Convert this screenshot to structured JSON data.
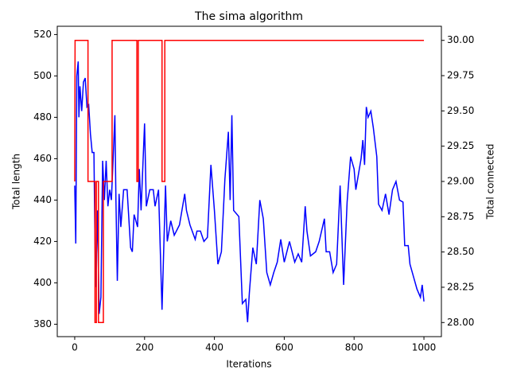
{
  "chart_data": {
    "type": "line",
    "title": "The sima algorithm",
    "x_label": "Iterations",
    "y_label": "Total length",
    "y2_label": "Total connected",
    "xlim": [
      -50,
      1050
    ],
    "xticks": [
      0,
      200,
      400,
      600,
      800,
      1000
    ],
    "ylim": [
      374,
      524
    ],
    "yticks": [
      380,
      400,
      420,
      440,
      460,
      480,
      500,
      520
    ],
    "y2lim": [
      27.9,
      30.1
    ],
    "y2ticks": [
      {
        "value": 28,
        "label": "28.00"
      },
      {
        "value": 28.25,
        "label": "28.25"
      },
      {
        "value": 28.5,
        "label": "28.50"
      },
      {
        "value": 28.75,
        "label": "28.75"
      },
      {
        "value": 29,
        "label": "29.00"
      },
      {
        "value": 29.25,
        "label": "29.25"
      },
      {
        "value": 29.5,
        "label": "29.50"
      },
      {
        "value": 29.75,
        "label": "29.75"
      },
      {
        "value": 30,
        "label": "30.00"
      }
    ],
    "y_color": "blue",
    "y2_color": "red",
    "series": [
      {
        "color": "blue",
        "x": [
          0,
          3,
          6,
          10,
          12,
          15,
          20,
          25,
          30,
          35,
          40,
          45,
          50,
          55,
          58,
          60,
          65,
          70,
          75,
          80,
          85,
          90,
          95,
          100,
          105,
          110,
          115,
          118,
          122,
          127,
          132,
          140,
          150,
          160,
          165,
          170,
          180,
          185,
          190,
          200,
          205,
          215,
          225,
          230,
          240,
          250,
          255,
          260,
          265,
          275,
          285,
          300,
          315,
          320,
          330,
          345,
          350,
          360,
          370,
          380,
          390,
          400,
          410,
          420,
          430,
          440,
          445,
          450,
          455,
          470,
          480,
          490,
          495,
          500,
          510,
          520,
          530,
          540,
          550,
          560,
          570,
          580,
          590,
          600,
          615,
          630,
          640,
          650,
          660,
          665,
          675,
          690,
          700,
          715,
          720,
          730,
          740,
          750,
          760,
          770,
          780,
          790,
          800,
          805,
          820,
          825,
          830,
          835,
          840,
          848,
          855,
          865,
          870,
          880,
          890,
          900,
          910,
          920,
          930,
          940,
          945,
          955,
          960,
          970,
          980,
          990,
          995,
          1000
        ],
        "values": [
          447,
          419,
          500,
          507,
          480,
          495,
          483,
          497,
          499,
          485,
          486,
          472,
          463,
          463,
          420,
          398,
          435,
          385,
          393,
          459,
          440,
          459,
          437,
          445,
          440,
          460,
          481,
          440,
          401,
          443,
          427,
          445,
          445,
          417,
          415,
          433,
          427,
          455,
          435,
          477,
          437,
          445,
          445,
          437,
          445,
          387,
          417,
          447,
          420,
          430,
          423,
          428,
          443,
          435,
          428,
          421,
          425,
          425,
          420,
          422,
          457,
          435,
          409,
          415,
          450,
          473,
          440,
          481,
          435,
          432,
          390,
          392,
          381,
          395,
          417,
          409,
          440,
          431,
          405,
          399,
          405,
          410,
          421,
          410,
          420,
          410,
          414,
          410,
          437,
          425,
          413,
          415,
          420,
          431,
          415,
          415,
          405,
          409,
          447,
          399,
          439,
          461,
          455,
          445,
          460,
          469,
          457,
          485,
          480,
          483,
          475,
          461,
          438,
          435,
          443,
          433,
          445,
          449,
          440,
          439,
          418,
          418,
          409,
          403,
          397,
          393,
          399,
          391
        ]
      },
      {
        "color": "red",
        "axis": "y2",
        "x": [
          0,
          1,
          38,
          38,
          58,
          58,
          62,
          62,
          68,
          68,
          82,
          82,
          107,
          107,
          178,
          178,
          182,
          182,
          250,
          250,
          258,
          258,
          1000
        ],
        "values": [
          29,
          30,
          30,
          29,
          29,
          28,
          28,
          29,
          29,
          28,
          28,
          29,
          29,
          30,
          30,
          29,
          29,
          30,
          30,
          29,
          29,
          30,
          30
        ]
      }
    ]
  }
}
